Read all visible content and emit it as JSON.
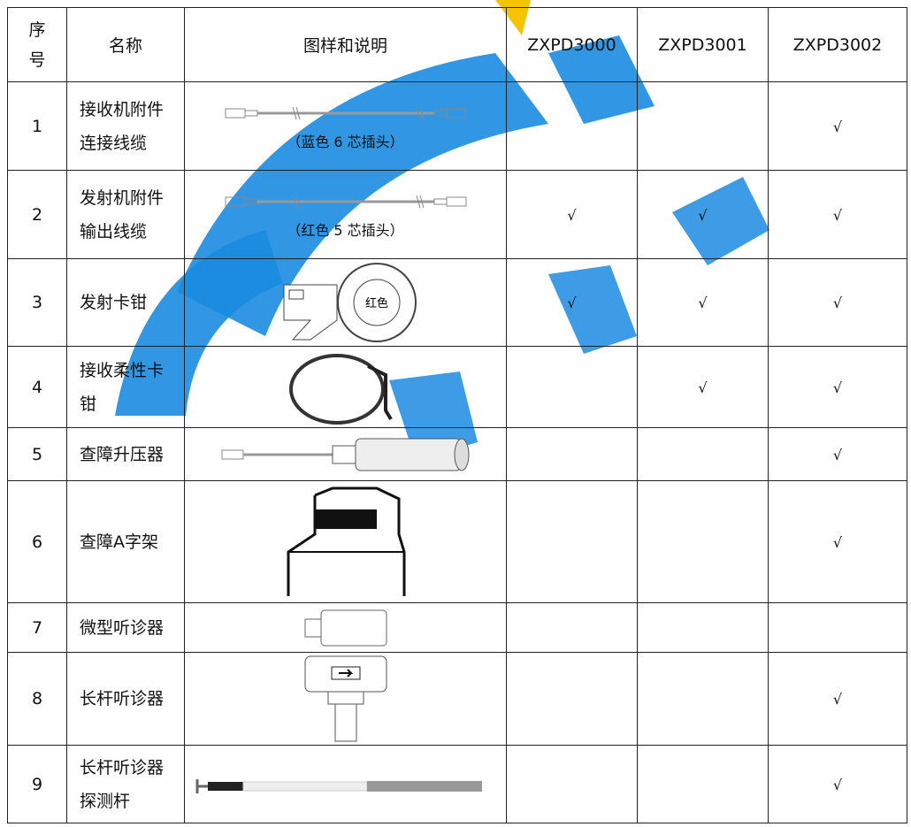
{
  "table": {
    "header": [
      "序号",
      "名称",
      "图样和说明",
      "ZXPD3000",
      "ZXPD3001",
      "ZXPD3002"
    ],
    "rows": [
      {
        "no": "1",
        "name": "接收机附件连接线缆",
        "caption": "（蓝色 6 芯插头）",
        "checks": [
          null,
          null,
          "√"
        ]
      },
      {
        "no": "2",
        "name": "发射机附件输出线缆",
        "caption": "（红色 5 芯插头）",
        "checks": [
          "√",
          "√",
          "√"
        ]
      },
      {
        "no": "3",
        "name": "发射卡钳",
        "image_label": "红色",
        "checks": [
          "√",
          "√",
          "√"
        ]
      },
      {
        "no": "4",
        "name": "接收柔性卡钳",
        "checks": [
          null,
          "√",
          "√"
        ]
      },
      {
        "no": "5",
        "name": "查障升压器",
        "checks": [
          null,
          null,
          "√"
        ]
      },
      {
        "no": "6",
        "name": "查障A字架",
        "checks": [
          null,
          null,
          "√"
        ]
      },
      {
        "no": "7",
        "name": "微型听诊器",
        "checks": [
          null,
          null,
          null
        ]
      },
      {
        "no": "8",
        "name": "长杆听诊器",
        "checks": [
          null,
          null,
          "√"
        ]
      },
      {
        "no": "9",
        "name": "长杆听诊器探测杆",
        "checks": [
          null,
          null,
          "√"
        ]
      }
    ]
  }
}
